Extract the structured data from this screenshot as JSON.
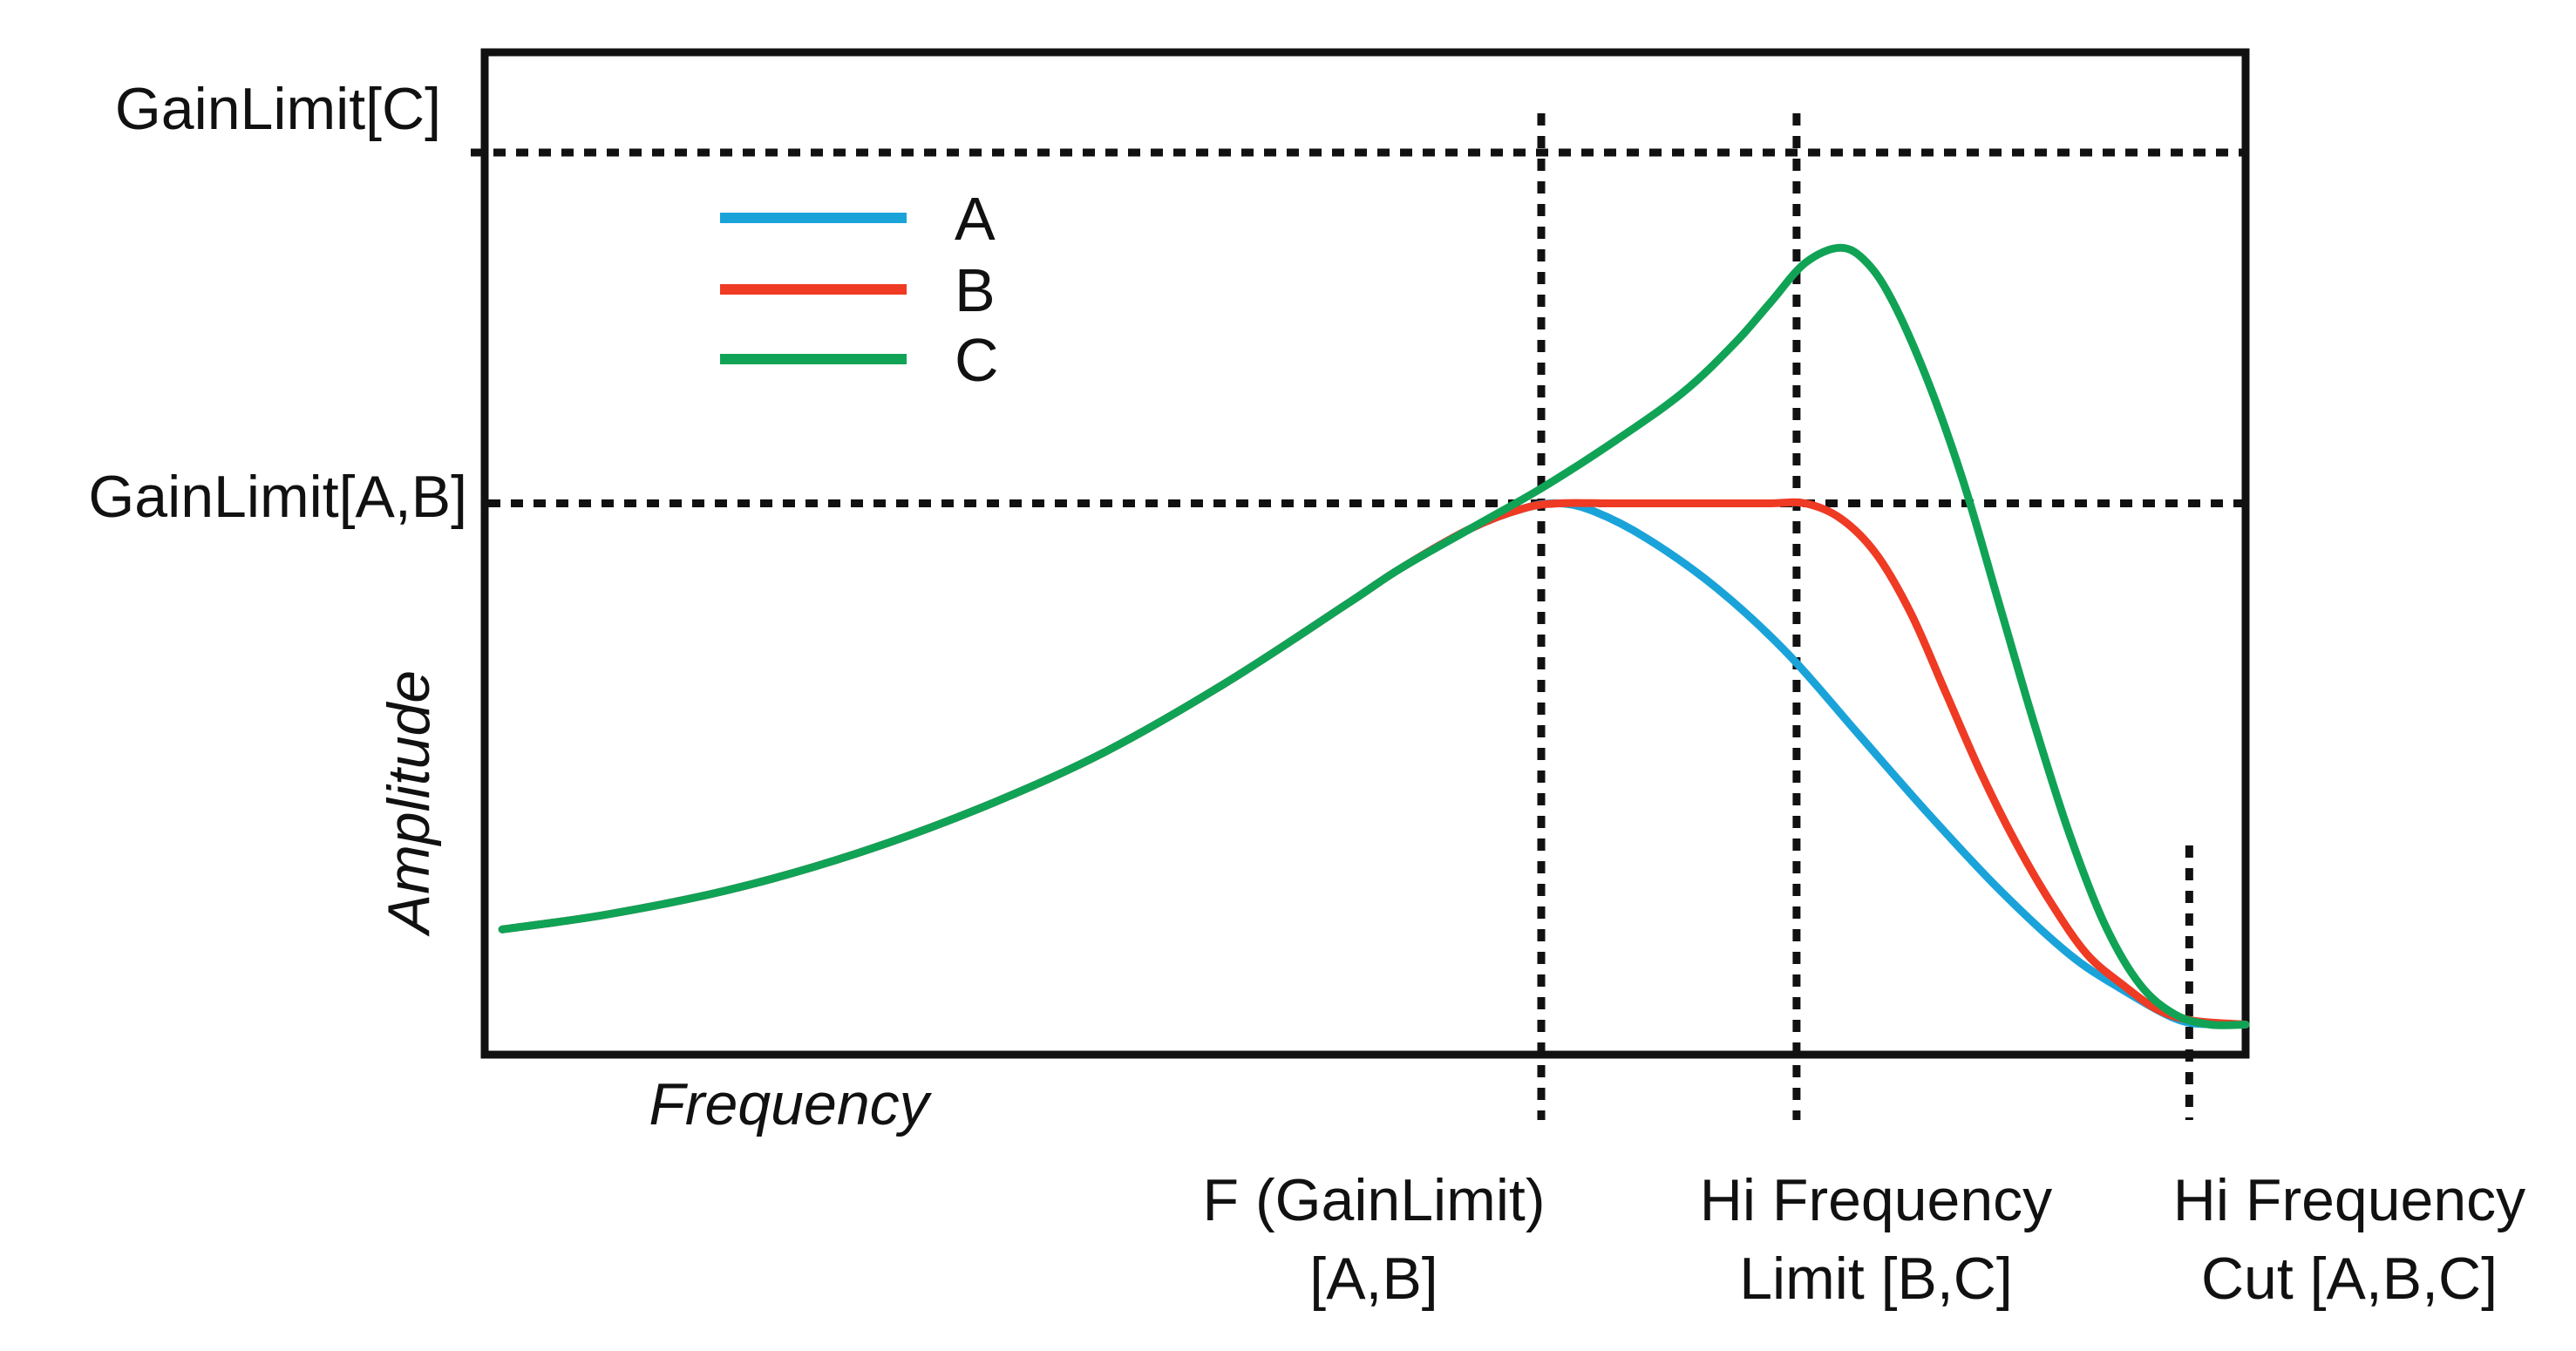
{
  "chart_data": {
    "type": "line",
    "title": "",
    "xlabel": "Frequency",
    "ylabel": "Amplitude",
    "x_range": [
      0,
      100
    ],
    "y_range": [
      0,
      100
    ],
    "grid": false,
    "legend_position": "top-left",
    "reference_lines": {
      "horizontal": [
        {
          "label": "GainLimit[C]",
          "y": 90
        },
        {
          "label": "GainLimit[A,B]",
          "y": 55
        }
      ],
      "vertical": [
        {
          "label_lines": [
            "F (GainLimit)",
            "[A,B]"
          ],
          "x": 60
        },
        {
          "label_lines": [
            "Hi Frequency",
            "Limit [B,C]"
          ],
          "x": 74.5
        },
        {
          "label_lines": [
            "Hi Frequency",
            "Cut [A,B,C]"
          ],
          "x": 96.8
        }
      ]
    },
    "series": [
      {
        "name": "A",
        "color": "#1aa3d9",
        "points": [
          [
            1,
            12.5
          ],
          [
            7,
            14
          ],
          [
            14,
            16.5
          ],
          [
            21,
            20
          ],
          [
            28,
            24.5
          ],
          [
            35,
            30
          ],
          [
            42,
            37
          ],
          [
            49,
            45
          ],
          [
            52,
            48.5
          ],
          [
            56,
            52.5
          ],
          [
            59,
            54.5
          ],
          [
            61,
            55
          ],
          [
            63,
            54.2
          ],
          [
            66,
            51.5
          ],
          [
            70,
            46.5
          ],
          [
            74,
            40
          ],
          [
            78,
            32
          ],
          [
            82,
            24
          ],
          [
            86,
            16.5
          ],
          [
            90,
            10
          ],
          [
            93,
            6.5
          ],
          [
            96,
            3.6
          ],
          [
            98,
            3
          ],
          [
            100,
            3
          ]
        ]
      },
      {
        "name": "B",
        "color": "#ef3a24",
        "points": [
          [
            1,
            12.5
          ],
          [
            7,
            14
          ],
          [
            14,
            16.5
          ],
          [
            21,
            20
          ],
          [
            28,
            24.5
          ],
          [
            35,
            30
          ],
          [
            42,
            37
          ],
          [
            49,
            45
          ],
          [
            52,
            48.5
          ],
          [
            56,
            52.5
          ],
          [
            59,
            54.5
          ],
          [
            61,
            55
          ],
          [
            64,
            55
          ],
          [
            67,
            55
          ],
          [
            70,
            55
          ],
          [
            73,
            55
          ],
          [
            75,
            55
          ],
          [
            77,
            53.5
          ],
          [
            79,
            50
          ],
          [
            81,
            44
          ],
          [
            83,
            36
          ],
          [
            85,
            28
          ],
          [
            87,
            21
          ],
          [
            89,
            15
          ],
          [
            91,
            10
          ],
          [
            93,
            7
          ],
          [
            95,
            4.5
          ],
          [
            97,
            3.4
          ],
          [
            100,
            3
          ]
        ]
      },
      {
        "name": "C",
        "color": "#10a356",
        "points": [
          [
            1,
            12.5
          ],
          [
            7,
            14
          ],
          [
            14,
            16.5
          ],
          [
            21,
            20
          ],
          [
            28,
            24.5
          ],
          [
            35,
            30
          ],
          [
            42,
            37
          ],
          [
            49,
            45
          ],
          [
            52,
            48.5
          ],
          [
            56,
            52.5
          ],
          [
            60,
            56.5
          ],
          [
            64,
            61
          ],
          [
            68,
            66
          ],
          [
            71,
            71
          ],
          [
            73,
            75
          ],
          [
            75,
            79
          ],
          [
            77,
            80.5
          ],
          [
            78.5,
            79
          ],
          [
            80,
            75
          ],
          [
            82,
            67
          ],
          [
            84,
            57
          ],
          [
            86,
            45
          ],
          [
            88,
            33
          ],
          [
            90,
            22
          ],
          [
            92,
            13
          ],
          [
            94,
            7
          ],
          [
            96,
            4
          ],
          [
            98,
            3
          ],
          [
            100,
            3
          ]
        ]
      }
    ]
  }
}
